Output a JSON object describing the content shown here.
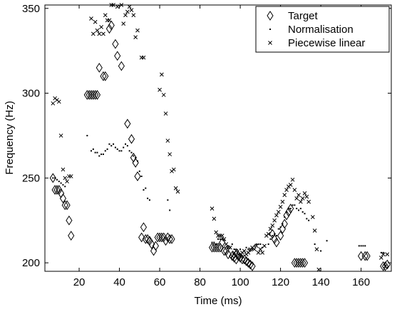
{
  "chart_data": {
    "type": "scatter",
    "xlabel": "Time (ms)",
    "ylabel": "Frequency (Hz)",
    "xlim": [
      3,
      175
    ],
    "ylim": [
      195,
      352
    ],
    "xticks": [
      20,
      40,
      60,
      80,
      100,
      120,
      140,
      160
    ],
    "yticks": [
      200,
      250,
      300,
      350
    ],
    "grid": false,
    "legend_position": "top-right",
    "series": [
      {
        "name": "Target",
        "marker": "diamond",
        "points": [
          [
            7,
            250
          ],
          [
            8,
            243
          ],
          [
            9,
            243
          ],
          [
            10,
            243
          ],
          [
            11,
            241
          ],
          [
            12,
            238
          ],
          [
            13,
            234
          ],
          [
            14,
            234
          ],
          [
            15,
            225
          ],
          [
            16,
            216
          ],
          [
            24,
            299
          ],
          [
            25,
            299
          ],
          [
            26,
            299
          ],
          [
            27,
            299
          ],
          [
            28,
            299
          ],
          [
            29,
            299
          ],
          [
            30,
            315
          ],
          [
            32,
            310
          ],
          [
            33,
            310
          ],
          [
            35,
            338
          ],
          [
            36,
            340
          ],
          [
            38,
            329
          ],
          [
            39,
            322
          ],
          [
            41,
            316
          ],
          [
            44,
            282
          ],
          [
            46,
            273
          ],
          [
            47,
            262
          ],
          [
            48,
            259
          ],
          [
            49,
            251
          ],
          [
            51,
            215
          ],
          [
            52,
            221
          ],
          [
            53,
            214
          ],
          [
            54,
            214
          ],
          [
            55,
            213
          ],
          [
            56,
            211
          ],
          [
            57,
            207
          ],
          [
            58,
            210
          ],
          [
            59,
            215
          ],
          [
            60,
            215
          ],
          [
            61,
            215
          ],
          [
            62,
            215
          ],
          [
            63,
            213
          ],
          [
            64,
            215
          ],
          [
            65,
            214
          ],
          [
            66,
            214
          ],
          [
            86,
            209
          ],
          [
            87,
            209
          ],
          [
            88,
            209
          ],
          [
            89,
            209
          ],
          [
            90,
            209
          ],
          [
            91,
            212
          ],
          [
            92,
            207
          ],
          [
            93,
            207
          ],
          [
            94,
            205
          ],
          [
            96,
            204
          ],
          [
            97,
            203
          ],
          [
            98,
            202
          ],
          [
            99,
            204
          ],
          [
            100,
            203
          ],
          [
            101,
            202
          ],
          [
            102,
            202
          ],
          [
            103,
            201
          ],
          [
            104,
            200
          ],
          [
            105,
            199
          ],
          [
            106,
            198
          ],
          [
            116,
            217
          ],
          [
            117,
            214
          ],
          [
            118,
            212
          ],
          [
            120,
            216
          ],
          [
            121,
            220
          ],
          [
            122,
            223
          ],
          [
            123,
            228
          ],
          [
            124,
            230
          ],
          [
            125,
            232
          ],
          [
            127,
            200
          ],
          [
            128,
            200
          ],
          [
            129,
            200
          ],
          [
            130,
            200
          ],
          [
            131,
            200
          ],
          [
            132,
            200
          ],
          [
            160,
            204
          ],
          [
            162,
            204
          ],
          [
            163,
            204
          ],
          [
            171,
            198
          ],
          [
            172,
            198
          ],
          [
            173,
            199
          ]
        ]
      },
      {
        "name": "Normalisation",
        "marker": "dot",
        "points": [
          [
            7,
            250
          ],
          [
            8,
            250
          ],
          [
            9,
            249
          ],
          [
            10,
            248
          ],
          [
            11,
            247
          ],
          [
            12,
            246
          ],
          [
            13,
            245
          ],
          [
            24,
            275
          ],
          [
            26,
            266
          ],
          [
            27,
            267
          ],
          [
            28,
            265
          ],
          [
            29,
            265
          ],
          [
            30,
            263
          ],
          [
            31,
            264
          ],
          [
            32,
            264
          ],
          [
            33,
            266
          ],
          [
            34,
            267
          ],
          [
            35,
            270
          ],
          [
            36,
            269
          ],
          [
            37,
            270
          ],
          [
            38,
            268
          ],
          [
            39,
            267
          ],
          [
            40,
            266
          ],
          [
            41,
            266
          ],
          [
            42,
            268
          ],
          [
            43,
            270
          ],
          [
            44,
            269
          ],
          [
            45,
            266
          ],
          [
            46,
            265
          ],
          [
            47,
            263
          ],
          [
            48,
            262
          ],
          [
            49,
            260
          ],
          [
            50,
            254
          ],
          [
            51,
            251
          ],
          [
            52,
            243
          ],
          [
            53,
            244
          ],
          [
            54,
            238
          ],
          [
            55,
            237
          ],
          [
            64,
            237
          ],
          [
            65,
            231
          ],
          [
            86,
            212
          ],
          [
            87,
            212
          ],
          [
            88,
            211
          ],
          [
            89,
            214
          ],
          [
            90,
            214
          ],
          [
            91,
            214
          ],
          [
            92,
            213
          ],
          [
            94,
            210
          ],
          [
            95,
            209
          ],
          [
            96,
            211
          ],
          [
            97,
            208
          ],
          [
            98,
            208
          ],
          [
            99,
            207
          ],
          [
            100,
            208
          ],
          [
            101,
            206
          ],
          [
            102,
            207
          ],
          [
            103,
            209
          ],
          [
            104,
            208
          ],
          [
            105,
            207
          ],
          [
            106,
            208
          ],
          [
            107,
            210
          ],
          [
            108,
            211
          ],
          [
            109,
            211
          ],
          [
            110,
            211
          ],
          [
            111,
            209
          ],
          [
            112,
            210
          ],
          [
            114,
            211
          ],
          [
            115,
            214
          ],
          [
            116,
            216
          ],
          [
            117,
            217
          ],
          [
            118,
            216
          ],
          [
            119,
            220
          ],
          [
            120,
            221
          ],
          [
            121,
            223
          ],
          [
            122,
            227
          ],
          [
            123,
            230
          ],
          [
            124,
            232
          ],
          [
            125,
            232
          ],
          [
            126,
            234
          ],
          [
            127,
            234
          ],
          [
            128,
            232
          ],
          [
            129,
            231
          ],
          [
            130,
            232
          ],
          [
            131,
            230
          ],
          [
            132,
            229
          ],
          [
            133,
            226
          ],
          [
            134,
            225
          ],
          [
            137,
            211
          ],
          [
            140,
            207
          ],
          [
            143,
            213
          ],
          [
            159,
            210
          ],
          [
            160,
            210
          ],
          [
            161,
            210
          ],
          [
            162,
            210
          ],
          [
            170,
            206
          ],
          [
            171,
            206
          ]
        ]
      },
      {
        "name": "Piecewise linear",
        "marker": "x",
        "points": [
          [
            7,
            294
          ],
          [
            8,
            297
          ],
          [
            9,
            296
          ],
          [
            10,
            295
          ],
          [
            11,
            275
          ],
          [
            12,
            255
          ],
          [
            13,
            250
          ],
          [
            14,
            248
          ],
          [
            15,
            251
          ],
          [
            16,
            251
          ],
          [
            26,
            344
          ],
          [
            27,
            335
          ],
          [
            28,
            342
          ],
          [
            29,
            337
          ],
          [
            30,
            335
          ],
          [
            31,
            339
          ],
          [
            32,
            335
          ],
          [
            33,
            346
          ],
          [
            34,
            343
          ],
          [
            35,
            343
          ],
          [
            36,
            352
          ],
          [
            37,
            352
          ],
          [
            38,
            353
          ],
          [
            39,
            351
          ],
          [
            40,
            353
          ],
          [
            41,
            352
          ],
          [
            42,
            341
          ],
          [
            43,
            346
          ],
          [
            44,
            348
          ],
          [
            45,
            351
          ],
          [
            46,
            349
          ],
          [
            47,
            346
          ],
          [
            48,
            333
          ],
          [
            49,
            337
          ],
          [
            51,
            321
          ],
          [
            52,
            321
          ],
          [
            60,
            302
          ],
          [
            61,
            311
          ],
          [
            62,
            299
          ],
          [
            63,
            288
          ],
          [
            64,
            272
          ],
          [
            65,
            264
          ],
          [
            66,
            254
          ],
          [
            67,
            255
          ],
          [
            68,
            244
          ],
          [
            69,
            242
          ],
          [
            86,
            232
          ],
          [
            87,
            226
          ],
          [
            88,
            218
          ],
          [
            89,
            216
          ],
          [
            90,
            216
          ],
          [
            91,
            216
          ],
          [
            92,
            214
          ],
          [
            93,
            211
          ],
          [
            94,
            209
          ],
          [
            95,
            209
          ],
          [
            96,
            204
          ],
          [
            97,
            206
          ],
          [
            98,
            207
          ],
          [
            99,
            205
          ],
          [
            100,
            204
          ],
          [
            101,
            206
          ],
          [
            102,
            207
          ],
          [
            103,
            205
          ],
          [
            104,
            206
          ],
          [
            105,
            208
          ],
          [
            106,
            209
          ],
          [
            107,
            208
          ],
          [
            108,
            210
          ],
          [
            109,
            206
          ],
          [
            110,
            208
          ],
          [
            111,
            206
          ],
          [
            112,
            210
          ],
          [
            113,
            216
          ],
          [
            114,
            217
          ],
          [
            115,
            220
          ],
          [
            116,
            222
          ],
          [
            117,
            225
          ],
          [
            118,
            228
          ],
          [
            119,
            230
          ],
          [
            120,
            233
          ],
          [
            121,
            236
          ],
          [
            122,
            240
          ],
          [
            123,
            243
          ],
          [
            124,
            245
          ],
          [
            125,
            246
          ],
          [
            126,
            249
          ],
          [
            127,
            243
          ],
          [
            128,
            238
          ],
          [
            129,
            240
          ],
          [
            130,
            236
          ],
          [
            131,
            238
          ],
          [
            132,
            241
          ],
          [
            133,
            239
          ],
          [
            134,
            236
          ],
          [
            136,
            227
          ],
          [
            137,
            219
          ],
          [
            138,
            208
          ],
          [
            139,
            196
          ],
          [
            170,
            203
          ],
          [
            171,
            205
          ],
          [
            172,
            198
          ],
          [
            173,
            205
          ]
        ]
      }
    ]
  }
}
